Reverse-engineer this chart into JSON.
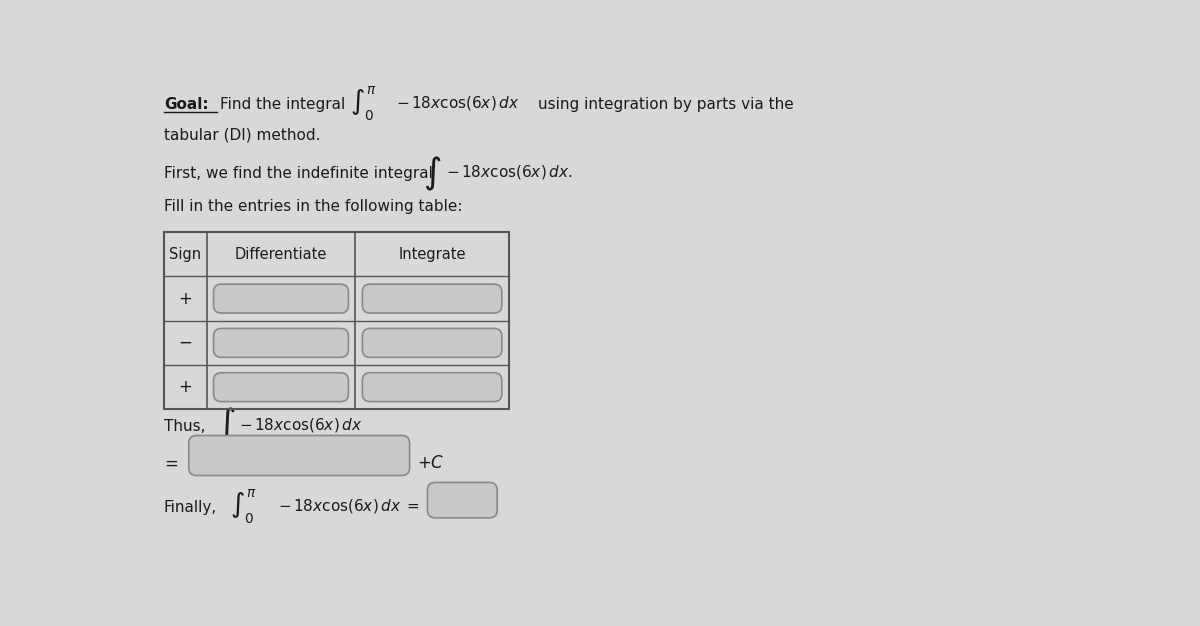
{
  "bg_color": "#d8d8d8",
  "text_color": "#1a1a1a",
  "input_box_color": "#c8c8c8",
  "table_border_color": "#555555",
  "input_border_color": "#888888",
  "table_headers": [
    "Sign",
    "Differentiate",
    "Integrate"
  ],
  "table_signs": [
    "+",
    "−",
    "+"
  ]
}
